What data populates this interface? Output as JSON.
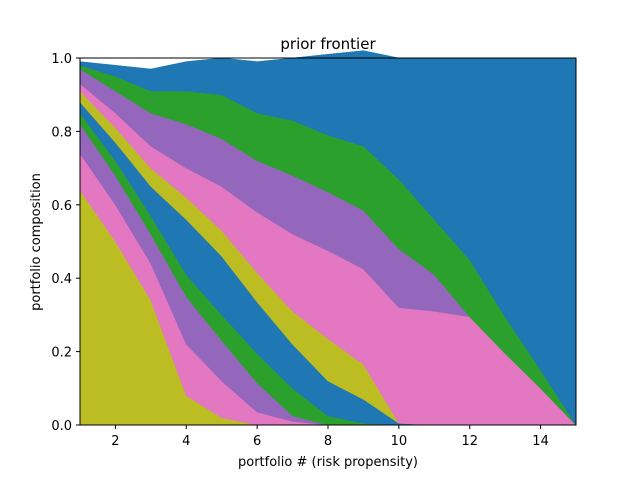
{
  "chart_data": {
    "type": "area",
    "stacked": true,
    "title": "prior frontier",
    "xlabel": "portfolio # (risk propensity)",
    "ylabel": "portfolio composition",
    "xlim": [
      1,
      15
    ],
    "ylim": [
      0,
      1.0
    ],
    "xticks": [
      2,
      4,
      6,
      8,
      10,
      12,
      14
    ],
    "yticks": [
      0.0,
      0.2,
      0.4,
      0.6,
      0.8,
      1.0
    ],
    "grid": false,
    "x": [
      1,
      2,
      3,
      4,
      5,
      6,
      7,
      8,
      9,
      10,
      11,
      12,
      13,
      14,
      15
    ],
    "series": [
      {
        "color": "#bcbd22",
        "values": [
          0.64,
          0.5,
          0.34,
          0.08,
          0.02,
          0.0,
          0.0,
          0.0,
          0.0,
          0.0,
          0.0,
          0.0,
          0.0,
          0.0,
          0.0
        ]
      },
      {
        "color": "#e377c2",
        "values": [
          0.1,
          0.1,
          0.1,
          0.14,
          0.1,
          0.035,
          0.01,
          0.0,
          0.0,
          0.0,
          0.0,
          0.0,
          0.0,
          0.0,
          0.0
        ]
      },
      {
        "color": "#9467bd",
        "values": [
          0.08,
          0.08,
          0.08,
          0.13,
          0.11,
          0.08,
          0.015,
          0.0,
          0.0,
          0.0,
          0.0,
          0.0,
          0.0,
          0.0,
          0.0
        ]
      },
      {
        "color": "#2ca02c",
        "values": [
          0.03,
          0.04,
          0.05,
          0.06,
          0.07,
          0.08,
          0.075,
          0.025,
          0.005,
          0.0,
          0.0,
          0.0,
          0.0,
          0.0,
          0.0
        ]
      },
      {
        "color": "#1f77b4",
        "values": [
          0.03,
          0.05,
          0.08,
          0.15,
          0.16,
          0.14,
          0.12,
          0.095,
          0.065,
          0.005,
          0.0,
          0.0,
          0.0,
          0.0,
          0.0
        ]
      },
      {
        "color": "#bcbd22",
        "values": [
          0.03,
          0.04,
          0.05,
          0.06,
          0.07,
          0.08,
          0.09,
          0.115,
          0.095,
          0.0,
          0.0,
          0.0,
          0.0,
          0.0,
          0.0
        ]
      },
      {
        "color": "#e377c2",
        "values": [
          0.02,
          0.04,
          0.06,
          0.08,
          0.12,
          0.165,
          0.21,
          0.24,
          0.26,
          0.315,
          0.31,
          0.295,
          0.195,
          0.1,
          0.0
        ]
      },
      {
        "color": "#9467bd",
        "values": [
          0.04,
          0.06,
          0.09,
          0.12,
          0.13,
          0.14,
          0.16,
          0.16,
          0.16,
          0.16,
          0.1,
          0.0,
          0.0,
          0.0,
          0.0
        ]
      },
      {
        "color": "#2ca02c",
        "values": [
          0.01,
          0.04,
          0.06,
          0.09,
          0.12,
          0.13,
          0.15,
          0.155,
          0.175,
          0.19,
          0.15,
          0.155,
          0.1,
          0.05,
          0.0
        ]
      },
      {
        "color": "#1f77b4",
        "values": [
          0.01,
          0.03,
          0.06,
          0.08,
          0.1,
          0.14,
          0.17,
          0.22,
          0.26,
          0.33,
          0.44,
          0.55,
          0.705,
          0.85,
          1.0
        ]
      }
    ]
  }
}
